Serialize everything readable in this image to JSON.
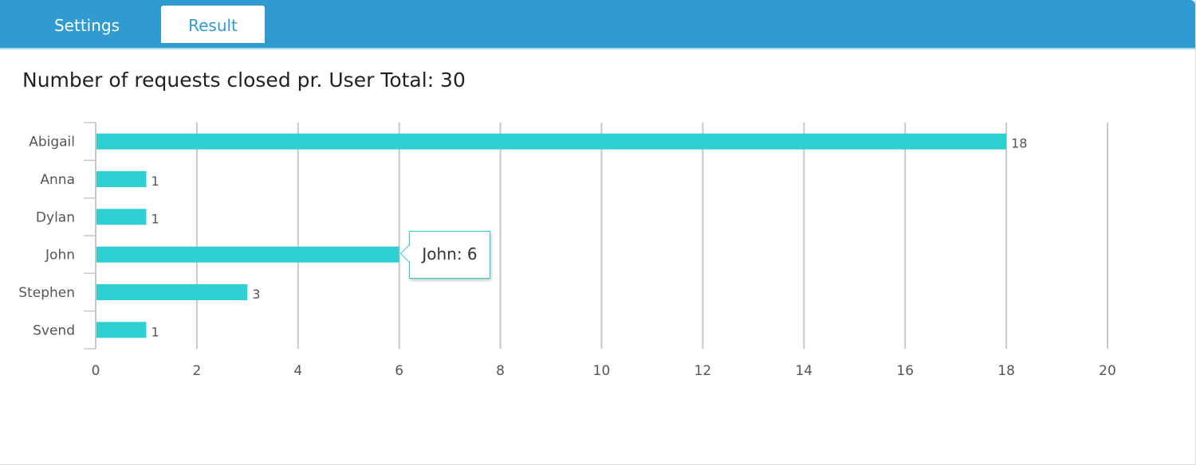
{
  "tabs": [
    {
      "label": "Settings",
      "active": false
    },
    {
      "label": "Result",
      "active": true
    }
  ],
  "colors": {
    "header": "#2f9bd1",
    "bar": "#2fcfd1",
    "grid": "#c8c8c8"
  },
  "chart_data": {
    "type": "bar",
    "orientation": "horizontal",
    "title": "Number of requests closed pr. User Total: 30",
    "categories": [
      "Abigail",
      "Anna",
      "Dylan",
      "John",
      "Stephen",
      "Svend"
    ],
    "values": [
      18,
      1,
      1,
      6,
      3,
      1
    ],
    "xlim": [
      0,
      20
    ],
    "xticks": [
      0,
      2,
      4,
      6,
      8,
      10,
      12,
      14,
      16,
      18,
      20
    ],
    "grid": true,
    "data_labels_shown": [
      "18",
      "1",
      "1",
      "",
      "3",
      "1"
    ],
    "tooltip": {
      "text": "John: 6",
      "category": "John"
    }
  }
}
